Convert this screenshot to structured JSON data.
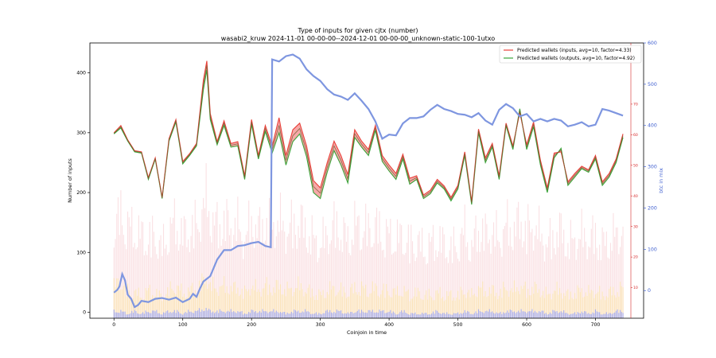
{
  "chart_data": {
    "type": "line",
    "title": "Type of inputs for given cjtx (number)",
    "subtitle": "wasabi2_kruw 2024-11-01 00-00-00--2024-12-01 00-00-00_unknown-static-100-1utxo",
    "xlabel": "Coinjoin in time",
    "ylabel": "Number of inputs",
    "y2label": "",
    "y3label": "btc in mix",
    "xlim": [
      -35,
      770
    ],
    "ylim": [
      -10,
      450
    ],
    "y2lim": [
      0,
      90
    ],
    "y3lim": [
      -67,
      600
    ],
    "x_ticks": [
      "0",
      "100",
      "200",
      "300",
      "400",
      "500",
      "600",
      "700"
    ],
    "y_ticks": [
      "0",
      "100",
      "200",
      "300",
      "400"
    ],
    "y2_ticks": [
      "10",
      "20",
      "30",
      "40",
      "50",
      "60",
      "70"
    ],
    "y3_ticks": [
      "0",
      "100",
      "200",
      "300",
      "400",
      "500",
      "600"
    ],
    "legend": {
      "position": "top-right",
      "entries": [
        "Predicted wallets (inputs, avg=10, factor=4.33)",
        "Predicted wallets (outputs, avg=10, factor=4.92)"
      ]
    },
    "series": [
      {
        "name": "Predicted wallets (inputs, avg=10, factor=4.33)",
        "color": "#e8413a",
        "x": [
          0,
          10,
          20,
          30,
          40,
          50,
          60,
          70,
          80,
          90,
          100,
          110,
          120,
          130,
          135,
          140,
          150,
          160,
          170,
          180,
          190,
          200,
          210,
          220,
          230,
          240,
          250,
          260,
          270,
          280,
          290,
          300,
          310,
          320,
          330,
          340,
          350,
          360,
          370,
          380,
          390,
          400,
          410,
          420,
          430,
          440,
          450,
          460,
          470,
          480,
          490,
          500,
          510,
          520,
          530,
          540,
          550,
          560,
          570,
          580,
          590,
          600,
          610,
          620,
          630,
          640,
          650,
          660,
          670,
          680,
          690,
          700,
          710,
          720,
          730,
          740
        ],
        "values": [
          300,
          312,
          288,
          270,
          268,
          225,
          258,
          192,
          290,
          322,
          252,
          265,
          282,
          388,
          420,
          332,
          285,
          320,
          282,
          285,
          228,
          322,
          262,
          312,
          278,
          325,
          262,
          305,
          316,
          278,
          220,
          208,
          250,
          286,
          262,
          230,
          305,
          286,
          272,
          312,
          262,
          246,
          232,
          264,
          224,
          228,
          196,
          204,
          222,
          211,
          192,
          212,
          268,
          185,
          306,
          258,
          282,
          228,
          316,
          278,
          334,
          280,
          318,
          254,
          208,
          266,
          268,
          218,
          232,
          244,
          238,
          262,
          218,
          232,
          256,
          298
        ]
      },
      {
        "name": "Predicted wallets (outputs, avg=10, factor=4.92)",
        "color": "#3aa53a",
        "x": [
          0,
          10,
          20,
          30,
          40,
          50,
          60,
          70,
          80,
          90,
          100,
          110,
          120,
          130,
          135,
          140,
          150,
          160,
          170,
          180,
          190,
          200,
          210,
          220,
          230,
          240,
          250,
          260,
          270,
          280,
          290,
          300,
          310,
          320,
          330,
          340,
          350,
          360,
          370,
          380,
          390,
          400,
          410,
          420,
          430,
          440,
          450,
          460,
          470,
          480,
          490,
          500,
          510,
          520,
          530,
          540,
          550,
          560,
          570,
          580,
          590,
          600,
          610,
          620,
          630,
          640,
          650,
          660,
          670,
          680,
          690,
          700,
          710,
          720,
          730,
          740
        ],
        "values": [
          298,
          308,
          286,
          268,
          266,
          222,
          256,
          190,
          286,
          318,
          248,
          262,
          278,
          372,
          405,
          322,
          280,
          312,
          276,
          278,
          222,
          314,
          256,
          302,
          266,
          300,
          246,
          285,
          298,
          260,
          200,
          190,
          234,
          270,
          246,
          216,
          292,
          276,
          262,
          304,
          252,
          236,
          222,
          256,
          214,
          222,
          190,
          198,
          216,
          206,
          186,
          206,
          262,
          180,
          300,
          250,
          276,
          222,
          312,
          272,
          340,
          272,
          310,
          246,
          200,
          258,
          274,
          212,
          226,
          240,
          234,
          256,
          212,
          226,
          250,
          292
        ]
      },
      {
        "name": "",
        "color": "#7e96e0",
        "axis": "y3",
        "x": [
          0,
          5,
          8,
          12,
          16,
          20,
          25,
          30,
          35,
          40,
          50,
          60,
          70,
          80,
          90,
          100,
          110,
          115,
          120,
          125,
          130,
          140,
          150,
          160,
          170,
          180,
          190,
          200,
          210,
          220,
          228,
          230,
          240,
          250,
          260,
          270,
          280,
          290,
          300,
          310,
          320,
          330,
          340,
          350,
          360,
          370,
          380,
          390,
          400,
          410,
          420,
          430,
          440,
          450,
          460,
          470,
          480,
          490,
          500,
          510,
          520,
          530,
          540,
          550,
          560,
          570,
          580,
          590,
          600,
          610,
          620,
          630,
          640,
          650,
          660,
          670,
          680,
          690,
          700,
          710,
          720,
          730,
          740
        ],
        "values": [
          -5,
          2,
          10,
          40,
          25,
          -10,
          -20,
          -40,
          -35,
          -25,
          -28,
          -20,
          -18,
          -22,
          -17,
          -28,
          -20,
          -8,
          -15,
          5,
          22,
          35,
          75,
          98,
          98,
          108,
          110,
          115,
          118,
          108,
          105,
          560,
          555,
          568,
          572,
          562,
          536,
          520,
          508,
          488,
          475,
          470,
          462,
          478,
          460,
          440,
          410,
          368,
          378,
          376,
          405,
          418,
          418,
          422,
          438,
          450,
          440,
          435,
          428,
          426,
          420,
          430,
          412,
          402,
          438,
          452,
          442,
          422,
          428,
          410,
          416,
          410,
          416,
          412,
          398,
          402,
          408,
          398,
          402,
          440,
          436,
          430,
          424
        ]
      },
      {
        "name": "",
        "color": "#f5c7cc",
        "axis": "y2",
        "note_values": [
          42,
          44,
          40,
          38,
          36,
          34,
          36,
          30,
          38,
          42,
          36,
          38,
          40,
          48,
          52,
          44,
          40,
          42,
          40,
          40,
          34,
          42,
          38,
          42,
          40,
          42,
          38,
          40,
          42,
          38,
          34,
          32,
          36,
          40,
          38,
          34,
          40,
          40,
          38,
          40,
          36,
          36,
          34,
          36,
          32,
          34,
          30,
          32,
          34,
          32,
          30,
          32,
          38,
          30,
          40,
          36,
          38,
          34,
          40,
          38,
          42,
          38,
          40,
          36,
          32,
          36,
          38,
          32,
          34,
          36,
          34,
          36,
          32,
          34,
          36,
          40
        ]
      },
      {
        "name": "",
        "color": "#fbe3a8",
        "axis": "y2",
        "note_values": [
          14,
          16,
          12,
          11,
          10,
          12,
          11,
          9,
          12,
          14,
          11,
          12,
          13,
          16,
          18,
          14,
          13,
          14,
          13,
          13,
          11,
          14,
          12,
          14,
          13,
          14,
          12,
          13,
          14,
          12,
          11,
          10,
          12,
          13,
          12,
          11,
          13,
          13,
          12,
          13,
          12,
          12,
          11,
          12,
          10,
          11,
          10,
          10,
          11,
          10,
          10,
          10,
          12,
          10,
          13,
          12,
          12,
          11,
          13,
          12,
          14,
          12,
          13,
          12,
          10,
          12,
          12,
          10,
          11,
          12,
          11,
          12,
          10,
          11,
          12,
          13
        ]
      },
      {
        "name": "",
        "color": "#9aa2f0",
        "axis": "y2",
        "note_values": [
          3,
          3,
          2,
          3,
          2,
          3,
          3,
          2,
          3,
          3,
          2,
          3,
          3,
          4,
          4,
          3,
          3,
          3,
          3,
          3,
          2,
          3,
          3,
          3,
          3,
          3,
          2,
          3,
          3,
          3,
          2,
          2,
          3,
          3,
          3,
          2,
          3,
          3,
          3,
          3,
          3,
          3,
          2,
          3,
          2,
          2,
          2,
          2,
          3,
          2,
          2,
          2,
          3,
          2,
          3,
          3,
          3,
          2,
          3,
          3,
          3,
          3,
          3,
          3,
          2,
          3,
          3,
          2,
          2,
          3,
          2,
          3,
          2,
          2,
          3,
          3
        ]
      }
    ]
  }
}
